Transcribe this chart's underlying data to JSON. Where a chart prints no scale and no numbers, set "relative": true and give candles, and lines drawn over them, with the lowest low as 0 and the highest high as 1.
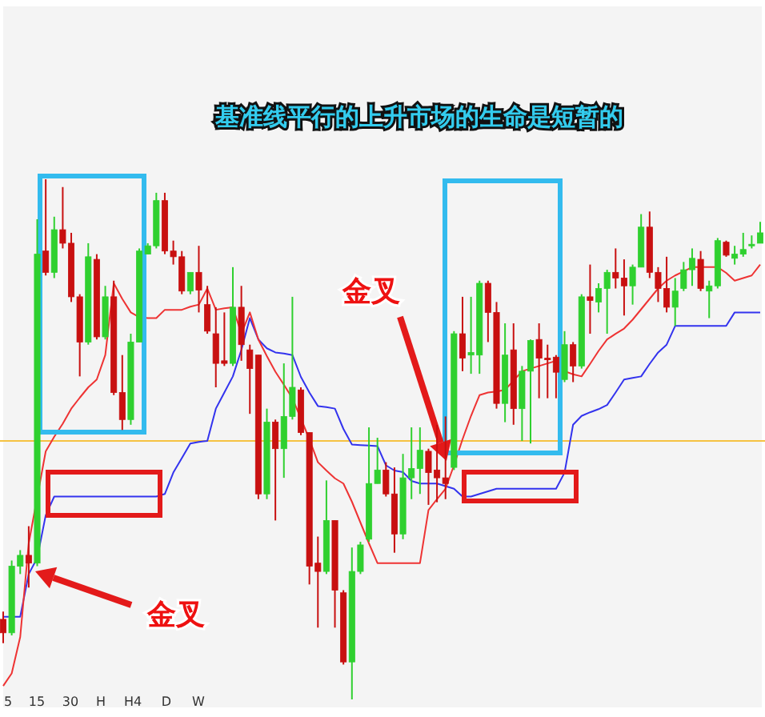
{
  "chart_data": {
    "type": "candlestick",
    "title": "基准线平行的上升市场的生命是短暂的",
    "relative": true,
    "categories": [
      null,
      null,
      null,
      null,
      null,
      null,
      null,
      null,
      null,
      null,
      null,
      null,
      null,
      null,
      null,
      null,
      null,
      null,
      null,
      null,
      null,
      null,
      null,
      null,
      null,
      null,
      null,
      null,
      null,
      null,
      null,
      null,
      null,
      null,
      null,
      null,
      null,
      null,
      null,
      null,
      null,
      null,
      null,
      null,
      null,
      null,
      null,
      null,
      null,
      null,
      null,
      null,
      null,
      null,
      null,
      null,
      null,
      null,
      null,
      null,
      null,
      null,
      null,
      null,
      null,
      null,
      null,
      null,
      null,
      null,
      null,
      null,
      null,
      null,
      null,
      null,
      null,
      null,
      null,
      null,
      null,
      null,
      null,
      null,
      null,
      null,
      null,
      null,
      null,
      null
    ],
    "ohlc": [
      [
        0.154,
        0.169,
        0.108,
        0.128
      ],
      [
        0.128,
        0.267,
        0.123,
        0.256
      ],
      [
        0.256,
        0.287,
        0.241,
        0.277
      ],
      [
        0.277,
        0.333,
        0.215,
        0.262
      ],
      [
        0.262,
        0.923,
        0.256,
        0.856
      ],
      [
        0.862,
        1.0,
        0.815,
        0.821
      ],
      [
        0.821,
        0.928,
        0.81,
        0.903
      ],
      [
        0.903,
        0.985,
        0.867,
        0.877
      ],
      [
        0.877,
        0.897,
        0.764,
        0.774
      ],
      [
        0.774,
        0.779,
        0.621,
        0.687
      ],
      [
        0.687,
        0.877,
        0.682,
        0.851
      ],
      [
        0.846,
        0.856,
        0.692,
        0.697
      ],
      [
        0.697,
        0.795,
        0.692,
        0.774
      ],
      [
        0.774,
        0.805,
        0.585,
        0.59
      ],
      [
        0.59,
        0.662,
        0.518,
        0.538
      ],
      [
        0.538,
        0.703,
        0.528,
        0.687
      ],
      [
        0.687,
        0.867,
        0.687,
        0.862
      ],
      [
        0.856,
        0.877,
        0.856,
        0.872
      ],
      [
        0.872,
        0.974,
        0.867,
        0.959
      ],
      [
        0.959,
        0.974,
        0.856,
        0.862
      ],
      [
        0.862,
        0.882,
        0.836,
        0.851
      ],
      [
        0.851,
        0.862,
        0.779,
        0.785
      ],
      [
        0.785,
        0.821,
        0.779,
        0.821
      ],
      [
        0.821,
        0.872,
        0.744,
        0.787
      ],
      [
        0.759,
        0.795,
        0.703,
        0.708
      ],
      [
        0.703,
        0.754,
        0.6,
        0.646
      ],
      [
        0.651,
        0.744,
        0.641,
        0.646
      ],
      [
        0.646,
        0.831,
        0.641,
        0.754
      ],
      [
        0.754,
        0.795,
        0.651,
        0.682
      ],
      [
        0.672,
        0.682,
        0.549,
        0.636
      ],
      [
        0.662,
        0.662,
        0.385,
        0.395
      ],
      [
        0.395,
        0.559,
        0.385,
        0.533
      ],
      [
        0.533,
        0.538,
        0.344,
        0.482
      ],
      [
        0.482,
        0.646,
        0.426,
        0.544
      ],
      [
        0.544,
        0.774,
        0.538,
        0.6
      ],
      [
        0.595,
        0.6,
        0.508,
        0.513
      ],
      [
        0.513,
        0.513,
        0.221,
        0.256
      ],
      [
        0.262,
        0.313,
        0.138,
        0.246
      ],
      [
        0.246,
        0.421,
        0.241,
        0.344
      ],
      [
        0.344,
        0.344,
        0.138,
        0.21
      ],
      [
        0.205,
        0.21,
        0.067,
        0.072
      ],
      [
        0.072,
        0.292,
        0.0,
        0.246
      ],
      [
        0.246,
        0.303,
        0.241,
        0.297
      ],
      [
        0.308,
        0.523,
        0.303,
        0.415
      ],
      [
        0.415,
        0.503,
        0.415,
        0.441
      ],
      [
        0.441,
        0.456,
        0.39,
        0.395
      ],
      [
        0.395,
        0.446,
        0.282,
        0.318
      ],
      [
        0.318,
        0.472,
        0.308,
        0.426
      ],
      [
        0.426,
        0.523,
        0.385,
        0.444
      ],
      [
        0.444,
        0.523,
        0.395,
        0.479
      ],
      [
        0.477,
        0.482,
        0.374,
        0.436
      ],
      [
        0.441,
        0.528,
        0.379,
        0.426
      ],
      [
        0.426,
        0.544,
        0.385,
        0.415
      ],
      [
        0.446,
        0.708,
        0.441,
        0.703
      ],
      [
        0.703,
        0.774,
        0.631,
        0.656
      ],
      [
        0.662,
        0.774,
        0.626,
        0.667
      ],
      [
        0.662,
        0.805,
        0.626,
        0.8
      ],
      [
        0.8,
        0.805,
        0.687,
        0.744
      ],
      [
        0.744,
        0.764,
        0.559,
        0.569
      ],
      [
        0.569,
        0.723,
        0.533,
        0.662
      ],
      [
        0.672,
        0.723,
        0.528,
        0.559
      ],
      [
        0.559,
        0.641,
        0.497,
        0.631
      ],
      [
        0.631,
        0.692,
        0.492,
        0.69
      ],
      [
        0.692,
        0.723,
        0.579,
        0.656
      ],
      [
        0.656,
        0.682,
        0.579,
        0.655
      ],
      [
        0.658,
        0.662,
        0.579,
        0.629
      ],
      [
        0.615,
        0.708,
        0.61,
        0.682
      ],
      [
        0.682,
        0.687,
        0.61,
        0.641
      ],
      [
        0.641,
        0.779,
        0.636,
        0.774
      ],
      [
        0.774,
        0.836,
        0.703,
        0.767
      ],
      [
        0.764,
        0.8,
        0.744,
        0.79
      ],
      [
        0.79,
        0.826,
        0.703,
        0.821
      ],
      [
        0.821,
        0.867,
        0.79,
        0.81
      ],
      [
        0.81,
        0.846,
        0.738,
        0.795
      ],
      [
        0.795,
        0.836,
        0.759,
        0.831
      ],
      [
        0.831,
        0.933,
        0.831,
        0.908
      ],
      [
        0.908,
        0.938,
        0.81,
        0.821
      ],
      [
        0.821,
        0.831,
        0.764,
        0.79
      ],
      [
        0.79,
        0.851,
        0.744,
        0.754
      ],
      [
        0.754,
        0.81,
        0.718,
        0.785
      ],
      [
        0.79,
        0.841,
        0.785,
        0.826
      ],
      [
        0.826,
        0.867,
        0.795,
        0.848
      ],
      [
        0.846,
        0.862,
        0.785,
        0.79
      ],
      [
        0.785,
        0.805,
        0.733,
        0.795
      ],
      [
        0.795,
        0.887,
        0.79,
        0.882
      ],
      [
        0.879,
        0.882,
        0.851,
        0.854
      ],
      [
        0.848,
        0.872,
        0.836,
        0.856
      ],
      [
        0.856,
        0.897,
        0.851,
        0.865
      ],
      [
        0.872,
        0.892,
        0.867,
        0.875
      ],
      [
        0.877,
        0.918,
        0.877,
        0.897
      ]
    ],
    "colors": [
      "#c81010",
      "#2fd02f",
      "#2fd02f",
      "#c81010",
      "#2fd02f",
      "#c81010",
      "#2fd02f",
      "#c81010",
      "#c81010",
      "#c81010",
      "#2fd02f",
      "#c81010",
      "#2fd02f",
      "#c81010",
      "#c81010",
      "#2fd02f",
      "#2fd02f",
      "#2fd02f",
      "#2fd02f",
      "#c81010",
      "#c81010",
      "#c81010",
      "#2fd02f",
      "#c81010",
      "#c81010",
      "#c81010",
      "#c81010",
      "#2fd02f",
      "#c81010",
      "#c81010",
      "#c81010",
      "#2fd02f",
      "#c81010",
      "#2fd02f",
      "#2fd02f",
      "#c81010",
      "#c81010",
      "#c81010",
      "#2fd02f",
      "#c81010",
      "#c81010",
      "#2fd02f",
      "#2fd02f",
      "#2fd02f",
      "#2fd02f",
      "#c81010",
      "#c81010",
      "#2fd02f",
      "#2fd02f",
      "#2fd02f",
      "#c81010",
      "#c81010",
      "#c81010",
      "#2fd02f",
      "#c81010",
      "#2fd02f",
      "#2fd02f",
      "#c81010",
      "#c81010",
      "#2fd02f",
      "#c81010",
      "#2fd02f",
      "#2fd02f",
      "#c81010",
      "#c81010",
      "#c81010",
      "#2fd02f",
      "#c81010",
      "#2fd02f",
      "#c81010",
      "#2fd02f",
      "#2fd02f",
      "#c81010",
      "#c81010",
      "#2fd02f",
      "#2fd02f",
      "#c81010",
      "#c81010",
      "#c81010",
      "#2fd02f",
      "#2fd02f",
      "#2fd02f",
      "#c81010",
      "#2fd02f",
      "#2fd02f",
      "#c81010",
      "#2fd02f",
      "#2fd02f",
      "#2fd02f",
      "#2fd02f"
    ],
    "series": [
      {
        "type": "line",
        "color": "#3333ee",
        "values": [
          0.159,
          0.159,
          0.159,
          0.241,
          0.272,
          0.354,
          0.39,
          0.39,
          0.39,
          0.39,
          0.39,
          0.39,
          0.39,
          0.39,
          0.39,
          0.39,
          0.39,
          0.39,
          0.39,
          0.395,
          0.436,
          0.464,
          0.492,
          0.495,
          0.497,
          0.559,
          0.59,
          0.621,
          0.672,
          0.733,
          0.692,
          0.675,
          0.667,
          0.665,
          0.662,
          0.62,
          0.59,
          0.564,
          0.562,
          0.559,
          0.52,
          0.49,
          0.489,
          0.488,
          0.487,
          0.45,
          0.44,
          0.437,
          0.42,
          0.415,
          0.415,
          0.415,
          0.41,
          0.405,
          0.39,
          0.39,
          0.395,
          0.4,
          0.405,
          0.405,
          0.405,
          0.405,
          0.405,
          0.405,
          0.405,
          0.405,
          0.436,
          0.528,
          0.545,
          0.552,
          0.558,
          0.566,
          0.59,
          0.615,
          0.618,
          0.621,
          0.645,
          0.667,
          0.682,
          0.718,
          0.718,
          0.718,
          0.718,
          0.718,
          0.718,
          0.718,
          0.744,
          0.744,
          0.744,
          0.744
        ]
      },
      {
        "type": "line",
        "color": "#ee3333",
        "values": [
          0.026,
          0.05,
          0.12,
          0.3,
          null,
          0.477,
          0.505,
          0.53,
          0.559,
          0.58,
          0.6,
          0.615,
          0.662,
          0.8,
          0.77,
          0.744,
          0.735,
          0.733,
          0.733,
          0.749,
          0.749,
          0.749,
          0.755,
          0.759,
          0.79,
          0.749,
          0.752,
          0.754,
          0.703,
          0.744,
          0.692,
          0.66,
          0.63,
          0.605,
          0.579,
          0.54,
          0.5,
          0.456,
          0.44,
          0.425,
          0.415,
          0.38,
          0.34,
          0.3,
          0.262,
          0.262,
          0.262,
          0.262,
          0.262,
          0.262,
          0.364,
          0.385,
          0.405,
          0.45,
          0.5,
          0.545,
          0.585,
          0.59,
          0.592,
          0.595,
          0.613,
          0.631,
          0.636,
          0.641,
          0.646,
          0.651,
          0.631,
          0.625,
          0.621,
          0.645,
          0.67,
          0.692,
          0.703,
          0.713,
          0.73,
          0.75,
          0.77,
          0.79,
          0.805,
          0.815,
          0.823,
          0.831,
          0.831,
          0.831,
          0.831,
          0.82,
          0.805,
          0.81,
          0.815,
          0.836
        ]
      }
    ],
    "ref_lines": [
      {
        "axis": "y",
        "value": 0.497,
        "color": "#f5c242"
      }
    ],
    "annotations": [
      "金叉",
      "金叉",
      "5",
      "15",
      "30",
      "H",
      "H4",
      "D",
      "W"
    ]
  }
}
